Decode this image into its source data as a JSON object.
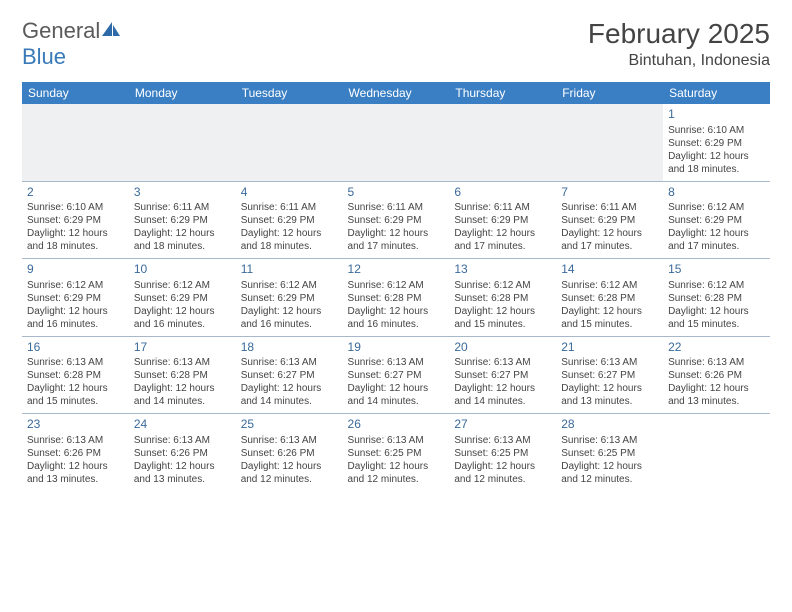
{
  "brand": {
    "part1": "General",
    "part2": "Blue"
  },
  "title": "February 2025",
  "location": "Bintuhan, Indonesia",
  "weekdays": [
    "Sunday",
    "Monday",
    "Tuesday",
    "Wednesday",
    "Thursday",
    "Friday",
    "Saturday"
  ],
  "colors": {
    "header_bg": "#3a7fc4",
    "header_fg": "#ffffff",
    "border": "#a8b8c8",
    "daynum": "#3a6a9a",
    "empty_bg": "#eef0f2"
  },
  "font": {
    "title_size": 28,
    "location_size": 16,
    "weekday_size": 12,
    "day_size": 12,
    "info_size": 10
  },
  "first_weekday_index": 6,
  "days": [
    {
      "n": 1,
      "sunrise": "6:10 AM",
      "sunset": "6:29 PM",
      "daylight": "12 hours and 18 minutes."
    },
    {
      "n": 2,
      "sunrise": "6:10 AM",
      "sunset": "6:29 PM",
      "daylight": "12 hours and 18 minutes."
    },
    {
      "n": 3,
      "sunrise": "6:11 AM",
      "sunset": "6:29 PM",
      "daylight": "12 hours and 18 minutes."
    },
    {
      "n": 4,
      "sunrise": "6:11 AM",
      "sunset": "6:29 PM",
      "daylight": "12 hours and 18 minutes."
    },
    {
      "n": 5,
      "sunrise": "6:11 AM",
      "sunset": "6:29 PM",
      "daylight": "12 hours and 17 minutes."
    },
    {
      "n": 6,
      "sunrise": "6:11 AM",
      "sunset": "6:29 PM",
      "daylight": "12 hours and 17 minutes."
    },
    {
      "n": 7,
      "sunrise": "6:11 AM",
      "sunset": "6:29 PM",
      "daylight": "12 hours and 17 minutes."
    },
    {
      "n": 8,
      "sunrise": "6:12 AM",
      "sunset": "6:29 PM",
      "daylight": "12 hours and 17 minutes."
    },
    {
      "n": 9,
      "sunrise": "6:12 AM",
      "sunset": "6:29 PM",
      "daylight": "12 hours and 16 minutes."
    },
    {
      "n": 10,
      "sunrise": "6:12 AM",
      "sunset": "6:29 PM",
      "daylight": "12 hours and 16 minutes."
    },
    {
      "n": 11,
      "sunrise": "6:12 AM",
      "sunset": "6:29 PM",
      "daylight": "12 hours and 16 minutes."
    },
    {
      "n": 12,
      "sunrise": "6:12 AM",
      "sunset": "6:28 PM",
      "daylight": "12 hours and 16 minutes."
    },
    {
      "n": 13,
      "sunrise": "6:12 AM",
      "sunset": "6:28 PM",
      "daylight": "12 hours and 15 minutes."
    },
    {
      "n": 14,
      "sunrise": "6:12 AM",
      "sunset": "6:28 PM",
      "daylight": "12 hours and 15 minutes."
    },
    {
      "n": 15,
      "sunrise": "6:12 AM",
      "sunset": "6:28 PM",
      "daylight": "12 hours and 15 minutes."
    },
    {
      "n": 16,
      "sunrise": "6:13 AM",
      "sunset": "6:28 PM",
      "daylight": "12 hours and 15 minutes."
    },
    {
      "n": 17,
      "sunrise": "6:13 AM",
      "sunset": "6:28 PM",
      "daylight": "12 hours and 14 minutes."
    },
    {
      "n": 18,
      "sunrise": "6:13 AM",
      "sunset": "6:27 PM",
      "daylight": "12 hours and 14 minutes."
    },
    {
      "n": 19,
      "sunrise": "6:13 AM",
      "sunset": "6:27 PM",
      "daylight": "12 hours and 14 minutes."
    },
    {
      "n": 20,
      "sunrise": "6:13 AM",
      "sunset": "6:27 PM",
      "daylight": "12 hours and 14 minutes."
    },
    {
      "n": 21,
      "sunrise": "6:13 AM",
      "sunset": "6:27 PM",
      "daylight": "12 hours and 13 minutes."
    },
    {
      "n": 22,
      "sunrise": "6:13 AM",
      "sunset": "6:26 PM",
      "daylight": "12 hours and 13 minutes."
    },
    {
      "n": 23,
      "sunrise": "6:13 AM",
      "sunset": "6:26 PM",
      "daylight": "12 hours and 13 minutes."
    },
    {
      "n": 24,
      "sunrise": "6:13 AM",
      "sunset": "6:26 PM",
      "daylight": "12 hours and 13 minutes."
    },
    {
      "n": 25,
      "sunrise": "6:13 AM",
      "sunset": "6:26 PM",
      "daylight": "12 hours and 12 minutes."
    },
    {
      "n": 26,
      "sunrise": "6:13 AM",
      "sunset": "6:25 PM",
      "daylight": "12 hours and 12 minutes."
    },
    {
      "n": 27,
      "sunrise": "6:13 AM",
      "sunset": "6:25 PM",
      "daylight": "12 hours and 12 minutes."
    },
    {
      "n": 28,
      "sunrise": "6:13 AM",
      "sunset": "6:25 PM",
      "daylight": "12 hours and 12 minutes."
    }
  ],
  "labels": {
    "sunrise": "Sunrise:",
    "sunset": "Sunset:",
    "daylight": "Daylight:"
  }
}
